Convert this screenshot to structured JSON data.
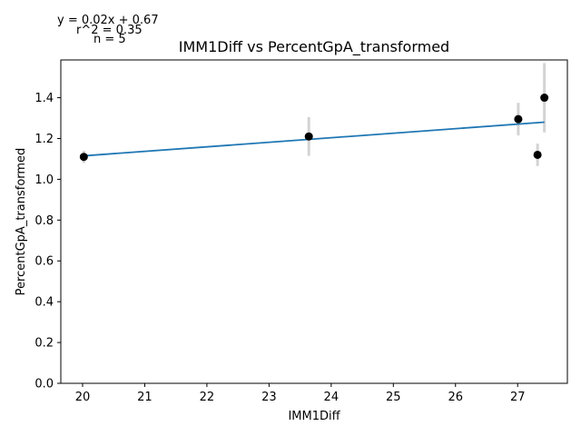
{
  "chart_data": {
    "type": "scatter",
    "title": "IMM1Diff vs PercentGpA_transformed",
    "xlabel": "IMM1Diff",
    "ylabel": "PercentGpA_transformed",
    "xlim": [
      19.65,
      27.8
    ],
    "ylim": [
      0,
      1.585
    ],
    "xticks": [
      20,
      21,
      22,
      23,
      24,
      25,
      26,
      27
    ],
    "yticks": [
      0.0,
      0.2,
      0.4,
      0.6,
      0.8,
      1.0,
      1.2,
      1.4
    ],
    "ytick_labels": [
      "0.0",
      "0.2",
      "0.4",
      "0.6",
      "0.8",
      "1.0",
      "1.2",
      "1.4"
    ],
    "points": [
      {
        "x": 20.02,
        "y": 1.11,
        "err": 0.03
      },
      {
        "x": 23.64,
        "y": 1.21,
        "err": 0.095
      },
      {
        "x": 27.01,
        "y": 1.295,
        "err": 0.08
      },
      {
        "x": 27.32,
        "y": 1.12,
        "err": 0.055
      },
      {
        "x": 27.43,
        "y": 1.4,
        "err": 0.17
      }
    ],
    "fit": {
      "x": [
        20.02,
        27.43
      ],
      "y": [
        1.115,
        1.28
      ]
    },
    "annotations": {
      "equation": "y = 0.02x + 0.67",
      "r2": "r^2 = 0.35",
      "n": "n = 5"
    },
    "colors": {
      "points": "#000000",
      "errorbars": "#d3d3d3",
      "fit": "#1f77b4"
    },
    "grid": false
  }
}
